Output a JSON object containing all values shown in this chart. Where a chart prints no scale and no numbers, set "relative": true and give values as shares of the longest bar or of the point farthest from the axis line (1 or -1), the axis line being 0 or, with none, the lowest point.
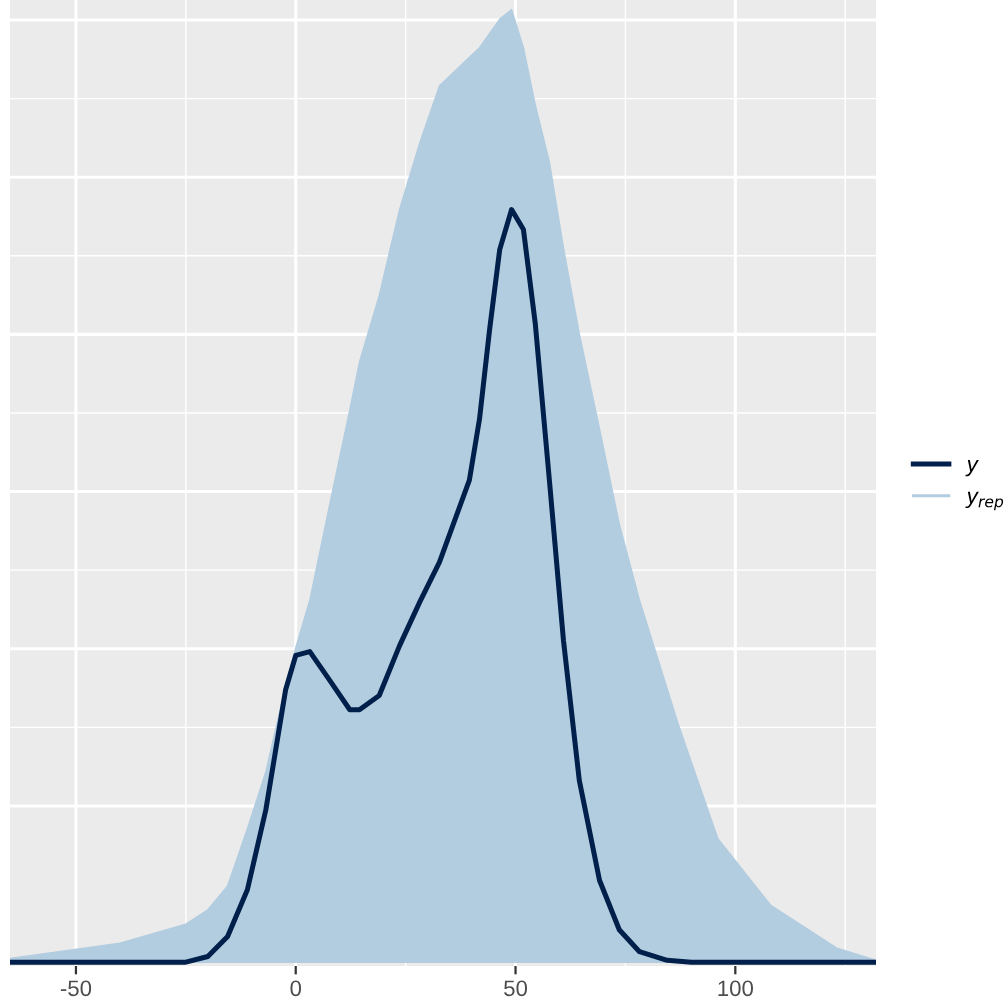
{
  "chart_data": {
    "type": "line",
    "relative": true,
    "xlim": [
      -65,
      132
    ],
    "xticks": [
      -50,
      0,
      50,
      100
    ],
    "grid": true,
    "legend": "right",
    "x": [
      -65,
      -40,
      -25,
      -20,
      -15.5,
      -11,
      -6.8,
      -2.3,
      0,
      3.2,
      7.7,
      12.3,
      14.5,
      19,
      23.6,
      28.2,
      32.7,
      39.5,
      41.8,
      44.1,
      46.4,
      49.1,
      51.8,
      54.5,
      57.7,
      60.9,
      64.5,
      69.1,
      73.6,
      78.2,
      84.5,
      90,
      132
    ],
    "series": [
      {
        "name": "y",
        "color": "#011f4b",
        "values": [
          0,
          0,
          0,
          0.006,
          0.027,
          0.076,
          0.16,
          0.286,
          0.322,
          0.326,
          0.296,
          0.265,
          0.265,
          0.28,
          0.332,
          0.378,
          0.42,
          0.506,
          0.57,
          0.664,
          0.748,
          0.79,
          0.769,
          0.67,
          0.506,
          0.338,
          0.191,
          0.086,
          0.034,
          0.011,
          0.002,
          0,
          0
        ]
      },
      {
        "name": "y$_{rep}$",
        "color": "#b3cde0",
        "type": "area",
        "x": [
          -65,
          -40,
          -25,
          -20,
          -15.5,
          -11,
          -6.8,
          -2.3,
          0,
          3.2,
          7.7,
          12.3,
          14.5,
          19,
          23.6,
          28.2,
          32.7,
          39.5,
          41.8,
          44.1,
          46.4,
          49.1,
          51.8,
          54.5,
          57.7,
          60.9,
          64.5,
          69.1,
          73.6,
          78.2,
          87,
          96,
          108,
          123,
          132
        ],
        "values": [
          0.004,
          0.02,
          0.04,
          0.055,
          0.08,
          0.14,
          0.2,
          0.29,
          0.33,
          0.38,
          0.48,
          0.58,
          0.63,
          0.7,
          0.79,
          0.86,
          0.92,
          0.95,
          0.96,
          0.975,
          0.99,
          1,
          0.96,
          0.9,
          0.84,
          0.75,
          0.66,
          0.56,
          0.46,
          0.38,
          0.25,
          0.13,
          0.06,
          0.015,
          0.002
        ]
      }
    ]
  }
}
